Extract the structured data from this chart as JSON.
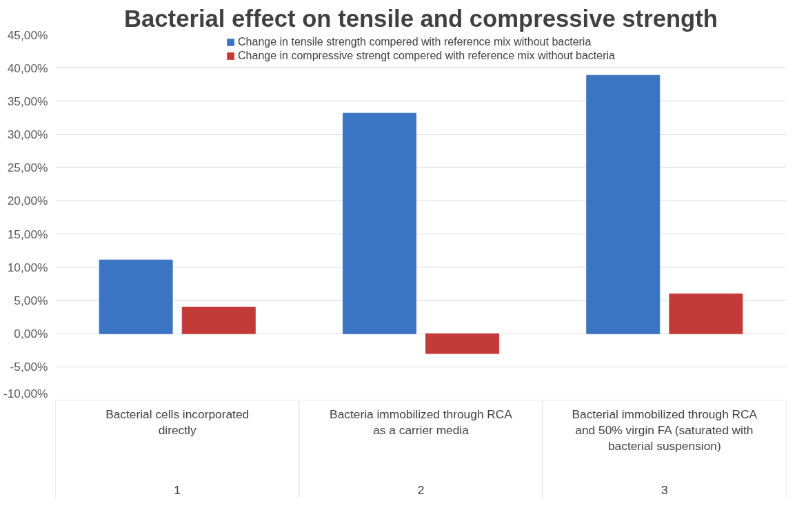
{
  "chart_data": {
    "type": "bar",
    "title": "Bacterial effect on tensile and compressive strength",
    "categories": [
      "Bacterial cells incorporated directly",
      "Bacteria immobilized through RCA as a carrier media",
      "Bacterial immobilized through RCA and 50% virgin FA (saturated with bacterial suspension)"
    ],
    "annotations": [
      "1",
      "2",
      "3"
    ],
    "series": [
      {
        "name": "Change in tensile strength compered with reference mix without bacteria",
        "color": "#3b74c2",
        "values": [
          11.1,
          33.2,
          38.9
        ]
      },
      {
        "name": "Change in compressive strengt compered with reference mix without bacteria",
        "color": "#c33b38",
        "values": [
          4.0,
          -3.0,
          6.0
        ]
      }
    ],
    "ylim": [
      -10,
      45
    ],
    "yticks": [
      {
        "value": -10,
        "label": "-10,00%"
      },
      {
        "value": -5,
        "label": "-5,00%"
      },
      {
        "value": 0,
        "label": "0,00%"
      },
      {
        "value": 5,
        "label": "5,00%"
      },
      {
        "value": 10,
        "label": "10,00%"
      },
      {
        "value": 15,
        "label": "15,00%"
      },
      {
        "value": 20,
        "label": "20,00%"
      },
      {
        "value": 25,
        "label": "25,00%"
      },
      {
        "value": 30,
        "label": "30,00%"
      },
      {
        "value": 35,
        "label": "35,00%"
      },
      {
        "value": 40,
        "label": "40,00%"
      },
      {
        "value": 45,
        "label": "45,00%"
      }
    ],
    "grid": "y",
    "legend": "top"
  }
}
